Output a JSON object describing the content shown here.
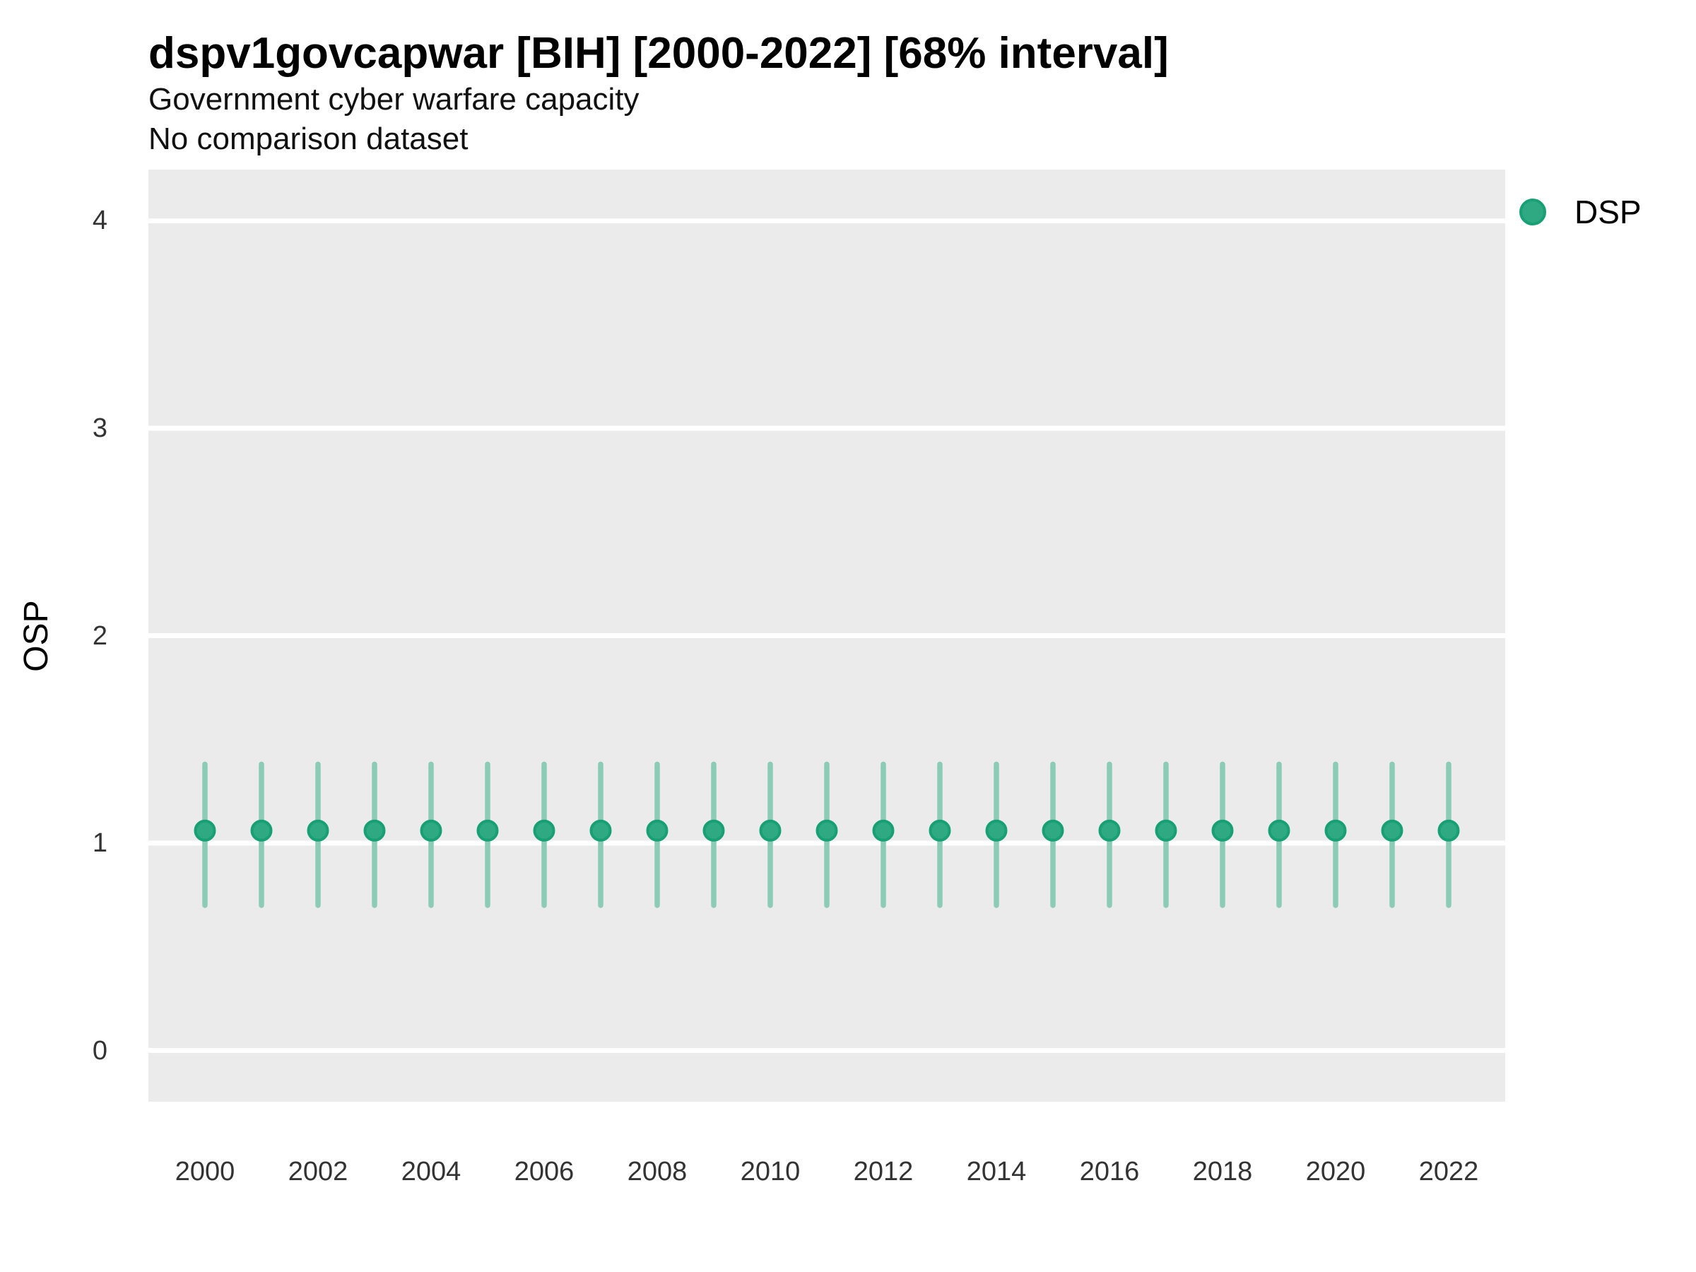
{
  "header": {
    "title": "dspv1govcapwar [BIH] [2000-2022] [68% interval]",
    "subtitle": "Government cyber warfare capacity",
    "note": "No comparison dataset"
  },
  "chart_data": {
    "type": "scatter",
    "variant": "pointrange",
    "title": "dspv1govcapwar [BIH] [2000-2022] [68% interval]",
    "subtitle": "Government cyber warfare capacity",
    "annotation": "No comparison dataset",
    "xlabel": "",
    "ylabel": "OSP",
    "xlim": [
      1999,
      2023
    ],
    "ylim": [
      -0.247,
      4.247
    ],
    "yticks": [
      0,
      1,
      2,
      3,
      4
    ],
    "xticks": [
      2000,
      2002,
      2004,
      2006,
      2008,
      2010,
      2012,
      2014,
      2016,
      2018,
      2020,
      2022
    ],
    "grid": "major-horizontal-only",
    "legend": {
      "label": "DSP",
      "position": "top-right"
    },
    "interval_label": "68% interval",
    "series": [
      {
        "name": "DSP",
        "x": [
          2000,
          2001,
          2002,
          2003,
          2004,
          2005,
          2006,
          2007,
          2008,
          2009,
          2010,
          2011,
          2012,
          2013,
          2014,
          2015,
          2016,
          2017,
          2018,
          2019,
          2020,
          2021,
          2022
        ],
        "estimate": [
          1.06,
          1.06,
          1.06,
          1.06,
          1.06,
          1.06,
          1.06,
          1.06,
          1.06,
          1.06,
          1.06,
          1.06,
          1.06,
          1.06,
          1.06,
          1.06,
          1.06,
          1.06,
          1.06,
          1.06,
          1.06,
          1.06,
          1.06
        ],
        "lower": [
          0.7,
          0.7,
          0.7,
          0.7,
          0.7,
          0.7,
          0.7,
          0.7,
          0.7,
          0.7,
          0.7,
          0.7,
          0.7,
          0.7,
          0.7,
          0.7,
          0.7,
          0.7,
          0.7,
          0.7,
          0.7,
          0.7,
          0.7
        ],
        "upper": [
          1.38,
          1.38,
          1.38,
          1.38,
          1.38,
          1.38,
          1.38,
          1.38,
          1.38,
          1.38,
          1.38,
          1.38,
          1.38,
          1.38,
          1.38,
          1.38,
          1.38,
          1.38,
          1.38,
          1.38,
          1.38,
          1.38,
          1.38
        ]
      }
    ],
    "colors": {
      "point_fill": "#2EA982",
      "point_stroke": "#18A075",
      "interval_bar": "#8CCBB5",
      "panel_background": "#EBEBEB",
      "gridline": "#FFFFFF",
      "tick_text": "#333333",
      "title_text": "#000000"
    }
  }
}
